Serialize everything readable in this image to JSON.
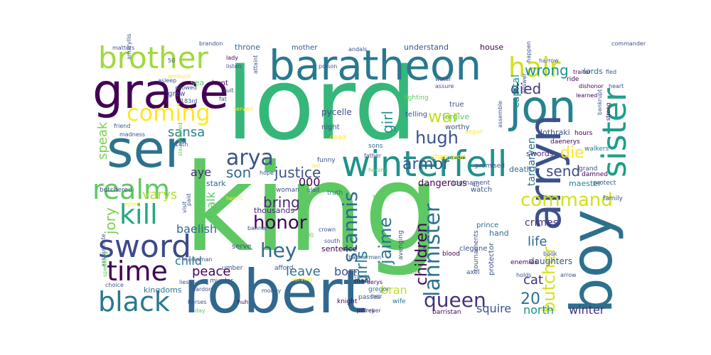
{
  "colors": {
    "background": "#ffffff",
    "palette": [
      "#440154",
      "#3b528b",
      "#21918c",
      "#5ec962",
      "#fde725"
    ]
  },
  "words": [
    {
      "text": "king",
      "color": "#5ec962"
    },
    {
      "text": "lord",
      "color": "#35b779"
    },
    {
      "text": "robert",
      "color": "#31688e"
    },
    {
      "text": "ser",
      "color": "#2c728e"
    },
    {
      "text": "grace",
      "color": "#440154"
    },
    {
      "text": "baratheon",
      "color": "#2a788e"
    },
    {
      "text": "jon",
      "color": "#26828e"
    },
    {
      "text": "boy",
      "color": "#2d708e"
    },
    {
      "text": "arryn",
      "color": "#3b528b"
    },
    {
      "text": "winterfell",
      "color": "#21918c"
    },
    {
      "text": "sister",
      "color": "#1f9e89"
    },
    {
      "text": "brother",
      "color": "#a0da39"
    },
    {
      "text": "sword",
      "color": "#3e4989"
    },
    {
      "text": "black",
      "color": "#2a788e"
    },
    {
      "text": "realm",
      "color": "#5ec962"
    },
    {
      "text": "coming",
      "color": "#fde725"
    },
    {
      "text": "time",
      "color": "#440154"
    },
    {
      "text": "kill",
      "color": "#22a884"
    },
    {
      "text": "hair",
      "color": "#d0e11c"
    },
    {
      "text": "arya",
      "color": "#3b528b"
    },
    {
      "text": "lannister",
      "color": "#2c728e"
    },
    {
      "text": "stannis",
      "color": "#31688e"
    },
    {
      "text": "queen",
      "color": "#46327e"
    },
    {
      "text": "butcher",
      "color": "#d8e219"
    },
    {
      "text": "command",
      "color": "#d0e11c"
    },
    {
      "text": "honor",
      "color": "#440154"
    },
    {
      "text": "hey",
      "color": "#31688e"
    },
    {
      "text": "war",
      "color": "#c2df23"
    },
    {
      "text": "hugh",
      "color": "#3b528b"
    },
    {
      "text": "fight",
      "color": "#b5de2b"
    },
    {
      "text": "justice",
      "color": "#3b528b"
    },
    {
      "text": "children",
      "color": "#440154"
    },
    {
      "text": "jaime",
      "color": "#2a788e"
    },
    {
      "text": "jory",
      "color": "#7ad151"
    },
    {
      "text": "girl",
      "color": "#21918c"
    },
    {
      "text": "girls",
      "color": "#26828e"
    },
    {
      "text": "armor",
      "color": "#39568c"
    },
    {
      "text": "died",
      "color": "#46327e"
    },
    {
      "text": "wrong",
      "color": "#21918c"
    },
    {
      "text": "send",
      "color": "#3e4989"
    },
    {
      "text": "die",
      "color": "#fde725"
    },
    {
      "text": "20",
      "color": "#2c728e"
    },
    {
      "text": "bring",
      "color": "#482878"
    },
    {
      "text": "leave",
      "color": "#2c728e"
    },
    {
      "text": "peace",
      "color": "#440154"
    },
    {
      "text": "son",
      "color": "#31688e"
    },
    {
      "text": "sansa",
      "color": "#26828e"
    },
    {
      "text": "varys",
      "color": "#b5de2b"
    },
    {
      "text": "speak",
      "color": "#7ad151"
    },
    {
      "text": "life",
      "color": "#31688e"
    },
    {
      "text": "north",
      "color": "#21918c"
    },
    {
      "text": "squire",
      "color": "#3b528b"
    },
    {
      "text": "winter",
      "color": "#472d7b"
    },
    {
      "text": "bran",
      "color": "#bddf26"
    },
    {
      "text": "cat",
      "color": "#46327e"
    },
    {
      "text": "born",
      "color": "#3b528b"
    },
    {
      "text": "baelish",
      "color": "#31688e"
    },
    {
      "text": "child",
      "color": "#2c728e"
    },
    {
      "text": "talk",
      "color": "#5ec962"
    },
    {
      "text": "aye",
      "color": "#482878"
    },
    {
      "text": "crimes",
      "color": "#46327e"
    },
    {
      "text": "capital",
      "color": "#21918c"
    },
    {
      "text": "targaryen",
      "color": "#2c728e"
    },
    {
      "text": "daughters",
      "color": "#3b528b"
    },
    {
      "text": "dangerous",
      "color": "#440154"
    },
    {
      "text": "kingdoms",
      "color": "#2c728e"
    },
    {
      "text": "000",
      "color": "#440154"
    },
    {
      "text": "dothraki",
      "color": "#3b528b"
    },
    {
      "text": "swords",
      "color": "#472d7b"
    },
    {
      "text": "maester",
      "color": "#26828e"
    },
    {
      "text": "death",
      "color": "#31688e"
    },
    {
      "text": "sentence",
      "color": "#440154"
    },
    {
      "text": "thousands",
      "color": "#482878"
    },
    {
      "text": "stark",
      "color": "#31688e"
    },
    {
      "text": "house",
      "color": "#440154"
    },
    {
      "text": "understand",
      "color": "#3b528b"
    },
    {
      "text": "throne",
      "color": "#31688e"
    },
    {
      "text": "mother",
      "color": "#3b528b"
    },
    {
      "text": "lords",
      "color": "#2c728e"
    },
    {
      "text": "hunt",
      "color": "#440154"
    },
    {
      "text": "grew",
      "color": "#3b528b"
    },
    {
      "text": "sea",
      "color": "#5ec962"
    },
    {
      "text": "pycelle",
      "color": "#3b528b"
    },
    {
      "text": "night",
      "color": "#3b528b"
    },
    {
      "text": "true",
      "color": "#3b528b"
    },
    {
      "text": "forgive",
      "color": "#5ec962"
    },
    {
      "text": "worthy",
      "color": "#3b528b"
    },
    {
      "text": "sons",
      "color": "#2c728e"
    },
    {
      "text": "fighting",
      "color": "#5ec962"
    },
    {
      "text": "telling",
      "color": "#3b528b"
    },
    {
      "text": "promised",
      "color": "#3b528b"
    },
    {
      "text": "tournament",
      "color": "#3b528b"
    },
    {
      "text": "watch",
      "color": "#3b528b"
    },
    {
      "text": "champion",
      "color": "#fde725"
    },
    {
      "text": "daenerys",
      "color": "#440154"
    },
    {
      "text": "hours",
      "color": "#440154"
    },
    {
      "text": "walkers",
      "color": "#2c728e"
    },
    {
      "text": "prince",
      "color": "#2c728e"
    },
    {
      "text": "hand",
      "color": "#2c728e"
    },
    {
      "text": "protector",
      "color": "#3b528b"
    },
    {
      "text": "tournaments",
      "color": "#3b528b"
    },
    {
      "text": "avenging",
      "color": "#3b528b"
    },
    {
      "text": "hoping",
      "color": "#5ec962"
    },
    {
      "text": "father",
      "color": "#3b528b"
    },
    {
      "text": "funny",
      "color": "#3b528b"
    },
    {
      "text": "woman",
      "color": "#3b528b"
    },
    {
      "text": "truth",
      "color": "#2c728e"
    },
    {
      "text": "hope",
      "color": "#3b528b"
    },
    {
      "text": "serve",
      "color": "#3b528b"
    },
    {
      "text": "afford",
      "color": "#3b528b"
    },
    {
      "text": "umber",
      "color": "#3b528b"
    },
    {
      "text": "murder",
      "color": "#3b528b"
    },
    {
      "text": "money",
      "color": "#3b528b"
    },
    {
      "text": "mad",
      "color": "#440154"
    },
    {
      "text": "passes",
      "color": "#3b528b"
    },
    {
      "text": "actors",
      "color": "#5ec962"
    },
    {
      "text": "blood",
      "color": "#440154"
    },
    {
      "text": "wife",
      "color": "#2c728e"
    },
    {
      "text": "knight",
      "color": "#440154"
    },
    {
      "text": "joffrey",
      "color": "#440154"
    },
    {
      "text": "heir",
      "color": "#3b528b"
    },
    {
      "text": "gregor",
      "color": "#2c728e"
    },
    {
      "text": "archer",
      "color": "#3b528b"
    },
    {
      "text": "barristan",
      "color": "#440154"
    },
    {
      "text": "enemies",
      "color": "#440154"
    },
    {
      "text": "axel",
      "color": "#3b528b"
    },
    {
      "text": "clegane",
      "color": "#3b528b"
    },
    {
      "text": "holds",
      "color": "#3b528b"
    },
    {
      "text": "damned",
      "color": "#440154"
    },
    {
      "text": "book",
      "color": "#3b528b"
    },
    {
      "text": "arrow",
      "color": "#3b528b"
    },
    {
      "text": "protect",
      "color": "#3b528b"
    },
    {
      "text": "family",
      "color": "#3b528b"
    },
    {
      "text": "grand",
      "color": "#3b528b"
    },
    {
      "text": "matters",
      "color": "#3b528b"
    },
    {
      "text": "brandon",
      "color": "#3b528b"
    },
    {
      "text": "andals",
      "color": "#3b528b"
    },
    {
      "text": "commander",
      "color": "#3b528b"
    },
    {
      "text": "lady",
      "color": "#440154"
    },
    {
      "text": "listen",
      "color": "#3b528b"
    },
    {
      "text": "poison",
      "color": "#3b528b"
    },
    {
      "text": "water",
      "color": "#3b528b"
    },
    {
      "text": "assure",
      "color": "#3b528b"
    },
    {
      "text": "answer",
      "color": "#3b528b"
    },
    {
      "text": "ride",
      "color": "#440154"
    },
    {
      "text": "traitor",
      "color": "#440154"
    },
    {
      "text": "fled",
      "color": "#3b528b"
    },
    {
      "text": "heart",
      "color": "#3b528b"
    },
    {
      "text": "dishonor",
      "color": "#440154"
    },
    {
      "text": "learned",
      "color": "#440154"
    },
    {
      "text": "bankrupt",
      "color": "#3b528b"
    },
    {
      "text": "strong",
      "color": "#440154"
    },
    {
      "text": "asleep",
      "color": "#3b528b"
    },
    {
      "text": "allowed",
      "color": "#3b528b"
    },
    {
      "text": "friend",
      "color": "#3b528b"
    },
    {
      "text": "madness",
      "color": "#3b528b"
    },
    {
      "text": "butchered",
      "color": "#3b528b"
    },
    {
      "text": "agree",
      "color": "#fde725"
    },
    {
      "text": "assassinate",
      "color": "#3b528b"
    },
    {
      "text": "speaking",
      "color": "#5ec962"
    },
    {
      "text": "choice",
      "color": "#3b528b"
    },
    {
      "text": "lies",
      "color": "#3b528b"
    },
    {
      "text": "pardon",
      "color": "#3b528b"
    },
    {
      "text": "horses",
      "color": "#3b528b"
    },
    {
      "text": "day",
      "color": "#5ec962"
    },
    {
      "text": "huh",
      "color": "#440154"
    },
    {
      "text": "marksman",
      "color": "#3b528b"
    },
    {
      "text": "paid",
      "color": "#3b528b"
    },
    {
      "text": "heard",
      "color": "#fde725"
    },
    {
      "text": "banner",
      "color": "#3b528b"
    },
    {
      "text": "bannermen",
      "color": "#3b528b"
    },
    {
      "text": "crown",
      "color": "#3b528b"
    },
    {
      "text": "lad",
      "color": "#fde725"
    },
    {
      "text": "glad",
      "color": "#3b528b"
    },
    {
      "text": "serving",
      "color": "#fde725"
    },
    {
      "text": "aerys",
      "color": "#440154"
    },
    {
      "text": "tywin",
      "color": "#3b528b"
    },
    {
      "text": "south",
      "color": "#3b528b"
    },
    {
      "text": "suit",
      "color": "#3b528b"
    },
    {
      "text": "fat",
      "color": "#3b528b"
    },
    {
      "text": "served",
      "color": "#fde725"
    },
    {
      "text": "dead",
      "color": "#fde725"
    },
    {
      "text": "attaint",
      "color": "#3b528b"
    },
    {
      "text": "harrow",
      "color": "#3b528b"
    },
    {
      "text": "happen",
      "color": "#3b528b"
    },
    {
      "text": "assemble",
      "color": "#3b528b"
    },
    {
      "text": "aegon",
      "color": "#fde725"
    },
    {
      "text": "visit",
      "color": "#3b528b"
    },
    {
      "text": "slaughtered",
      "color": "#5ec962"
    },
    {
      "text": "matched",
      "color": "#5ec962"
    },
    {
      "text": "50",
      "color": "#3b528b"
    },
    {
      "text": "ambush",
      "color": "#fde725"
    },
    {
      "text": "amaryllis",
      "color": "#3b528b"
    },
    {
      "text": "40",
      "color": "#3b528b"
    },
    {
      "text": "17",
      "color": "#3b528b"
    },
    {
      "text": "14th",
      "color": "#3b528b"
    },
    {
      "text": "183rd",
      "color": "#3b528b"
    },
    {
      "text": "100",
      "color": "#5ec962"
    }
  ]
}
